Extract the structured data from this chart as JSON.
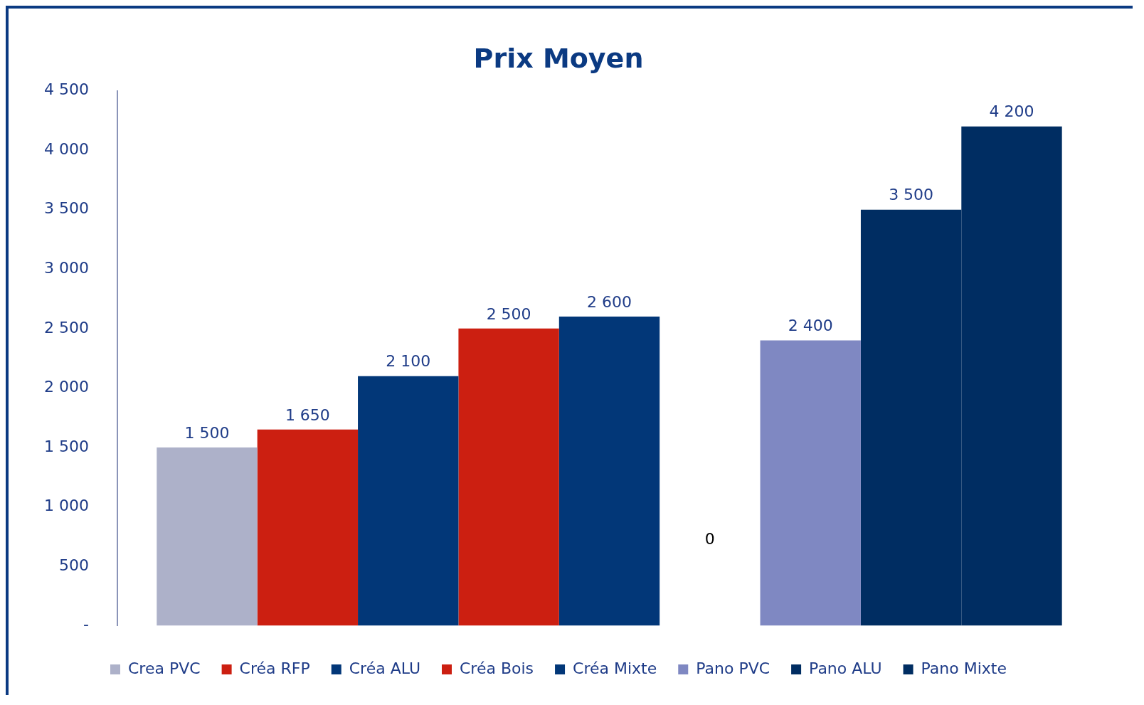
{
  "chart_data": {
    "type": "bar",
    "title": "Prix Moyen",
    "categories": [
      null
    ],
    "series": [
      {
        "name": "Crea PVC",
        "color": "#adb1c9",
        "values": [
          1500
        ],
        "value_labels": [
          "1 500"
        ]
      },
      {
        "name": "Créa RFP",
        "color": "#cc1f11",
        "values": [
          1650
        ],
        "value_labels": [
          "1 650"
        ]
      },
      {
        "name": "Créa ALU",
        "color": "#023778",
        "values": [
          2100
        ],
        "value_labels": [
          "2 100"
        ]
      },
      {
        "name": "Créa Bois",
        "color": "#cc1f11",
        "values": [
          2500
        ],
        "value_labels": [
          "2 500"
        ]
      },
      {
        "name": "Créa Mixte",
        "color": "#023778",
        "values": [
          2600
        ],
        "value_labels": [
          "2 600"
        ]
      },
      {
        "values": [
          null
        ]
      },
      {
        "name": "Pano PVC",
        "color": "#7f88c2",
        "values": [
          2400
        ],
        "value_labels": [
          "2 400"
        ]
      },
      {
        "name": "Pano ALU",
        "color": "#002d62",
        "values": [
          3500
        ],
        "value_labels": [
          "3 500"
        ]
      },
      {
        "name": "Pano Mixte",
        "color": "#002d62",
        "values": [
          4200
        ],
        "value_labels": [
          "4 200"
        ]
      }
    ],
    "ylim": [
      0,
      4500
    ],
    "yticks": [
      {
        "value": 0,
        "label": "-"
      },
      500,
      {
        "value": 1000,
        "label": "1 000"
      },
      {
        "value": 1500,
        "label": "1 500"
      },
      {
        "value": 2000,
        "label": "2 000"
      },
      {
        "value": 2500,
        "label": "2 500"
      },
      {
        "value": 3000,
        "label": "3 000"
      },
      {
        "value": 3500,
        "label": "3 500"
      },
      {
        "value": 4000,
        "label": "4 000"
      },
      {
        "value": 4500,
        "label": "4 500"
      }
    ],
    "grid": false,
    "legend": "bottom",
    "annotations": [
      "0"
    ]
  }
}
